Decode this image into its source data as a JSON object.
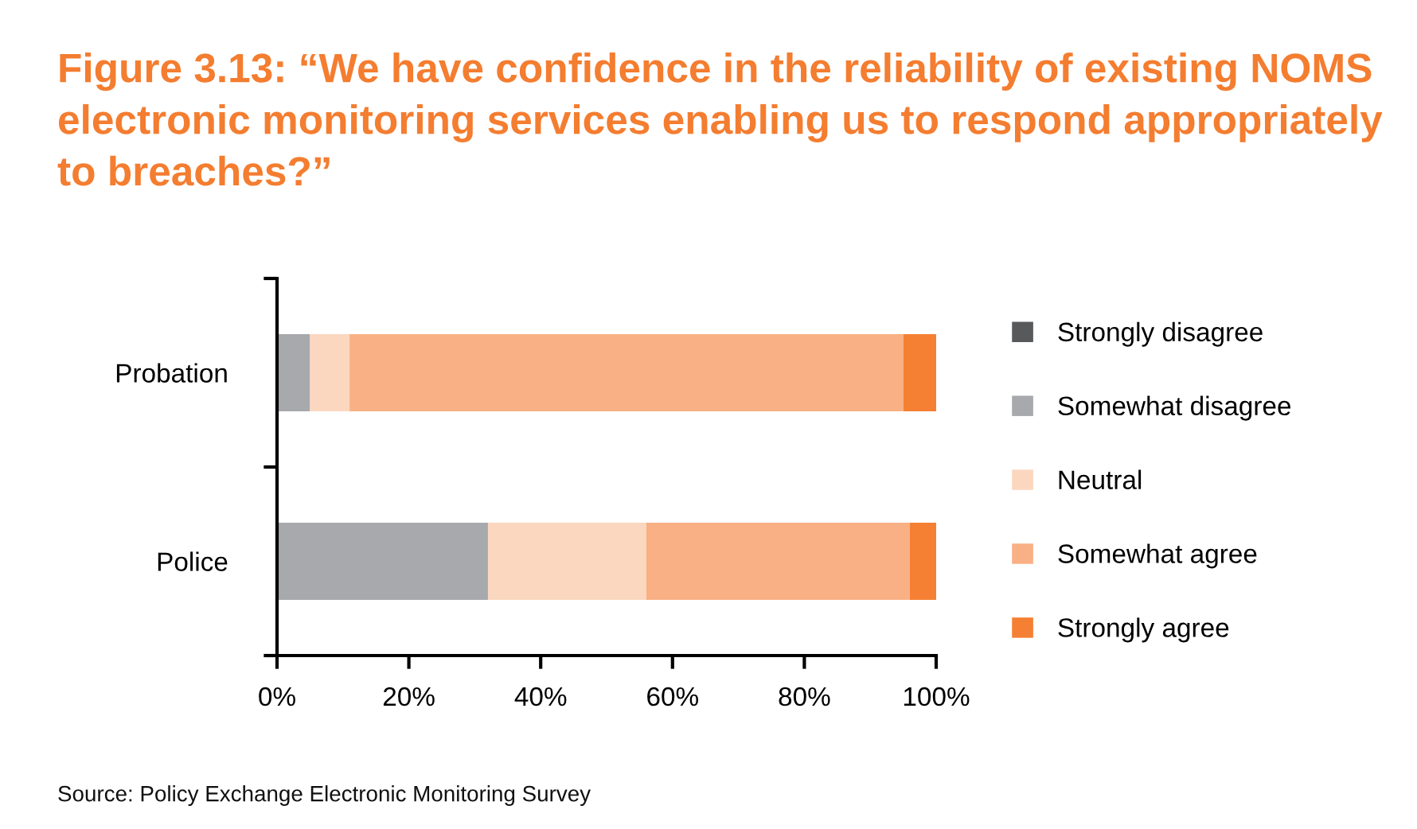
{
  "chart_data": {
    "type": "bar",
    "title": "Figure 3.13: “We have confidence in the reliability of existing NOMS electronic monitoring services enabling us to respond appropriately to breaches?”",
    "categories": [
      "Probation",
      "Police"
    ],
    "orientation": "horizontal",
    "stacked": true,
    "series": [
      {
        "name": "Strongly disagree",
        "color": "#58595b",
        "values": [
          0,
          0
        ]
      },
      {
        "name": "Somewhat disagree",
        "color": "#a7a9ac",
        "values": [
          5,
          32
        ]
      },
      {
        "name": "Neutral",
        "color": "#fbd7bf",
        "values": [
          6,
          24
        ]
      },
      {
        "name": "Somewhat agree",
        "color": "#f9b084",
        "values": [
          84,
          40
        ]
      },
      {
        "name": "Strongly agree",
        "color": "#f58033",
        "values": [
          5,
          4
        ]
      }
    ],
    "xlim": [
      0,
      100
    ],
    "xticks": [
      {
        "value": 0,
        "label": "0%"
      },
      {
        "value": 20,
        "label": "20%"
      },
      {
        "value": 40,
        "label": "40%"
      },
      {
        "value": 60,
        "label": "60%"
      },
      {
        "value": 80,
        "label": "80%"
      },
      {
        "value": 100,
        "label": "100%"
      }
    ],
    "grid": false,
    "legend": "right",
    "annotations": [
      "Source: Policy Exchange Electronic Monitoring Survey"
    ]
  }
}
